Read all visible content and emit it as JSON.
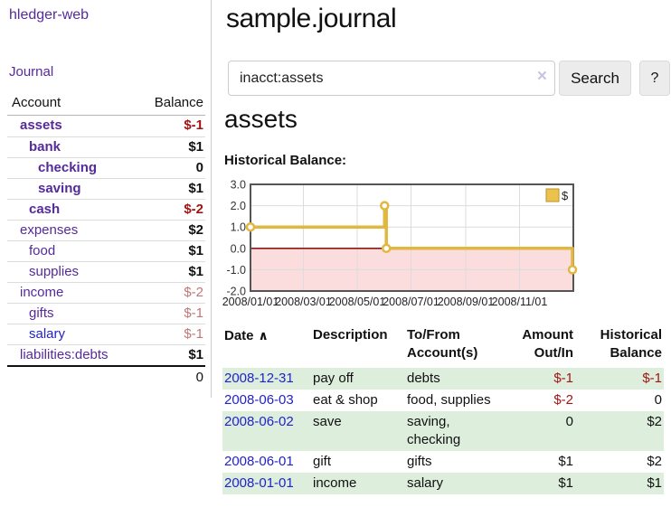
{
  "app": {
    "title": "hledger-web"
  },
  "colors": {
    "purple": "#552a9b",
    "link_blue": "#2222cc",
    "negative": "#a31515",
    "negative_muted": "#c07777",
    "row_stripe": "#ddeedd"
  },
  "sidebar": {
    "journal_link": "Journal",
    "accounts_table": {
      "headers": {
        "account": "Account",
        "balance": "Balance"
      },
      "rows": [
        {
          "name": "assets",
          "balance": "$-1",
          "depth": 1,
          "bold": true,
          "balance_tone": "strong-negative"
        },
        {
          "name": "bank",
          "balance": "$1",
          "depth": 2,
          "bold": true,
          "balance_tone": null
        },
        {
          "name": "checking",
          "balance": "0",
          "depth": 3,
          "bold": true,
          "balance_tone": null
        },
        {
          "name": "saving",
          "balance": "$1",
          "depth": 3,
          "bold": true,
          "balance_tone": null
        },
        {
          "name": "cash",
          "balance": "$-2",
          "depth": 2,
          "bold": true,
          "balance_tone": "strong-negative"
        },
        {
          "name": "expenses",
          "balance": "$2",
          "depth": 1,
          "bold": false,
          "balance_tone": null
        },
        {
          "name": "food",
          "balance": "$1",
          "depth": 2,
          "bold": false,
          "balance_tone": null
        },
        {
          "name": "supplies",
          "balance": "$1",
          "depth": 2,
          "bold": false,
          "balance_tone": null
        },
        {
          "name": "income",
          "balance": "$-2",
          "depth": 1,
          "bold": false,
          "balance_tone": "muted-negative"
        },
        {
          "name": "gifts",
          "balance": "$-1",
          "depth": 2,
          "bold": false,
          "balance_tone": "muted-negative"
        },
        {
          "name": "salary",
          "balance": "$-1",
          "depth": 2,
          "bold": false,
          "balance_tone": "muted-negative",
          "link_color": "blue"
        },
        {
          "name": "liabilities:debts",
          "balance": "$1",
          "depth": 1,
          "bold": false,
          "balance_tone": null
        }
      ],
      "total": "0"
    }
  },
  "main": {
    "title": "sample.journal",
    "search": {
      "value": "inacct:assets",
      "clear_icon": "×",
      "button": "Search",
      "help_button": "?"
    },
    "account_heading": "assets",
    "chart_heading": "Historical Balance:"
  },
  "chart_data": {
    "type": "line",
    "style": "step-after",
    "title": "Historical Balance:",
    "legend": [
      {
        "label": "$",
        "color": "#ecc24d",
        "border": "#b8962e"
      }
    ],
    "legend_position": "top-right",
    "grid": true,
    "grid_color": "#dcdcdc",
    "frame_color": "#555555",
    "zero_line_color": "#8b1717",
    "negative_region_color": "#fcdddd",
    "x_range": [
      "2008-01-01",
      "2009-01-01"
    ],
    "x_ticks": [
      "2008/01/01",
      "2008/03/01",
      "2008/05/01",
      "2008/07/01",
      "2008/09/01",
      "2008/11/01"
    ],
    "x_tick_dates": [
      "2008-01-01",
      "2008-03-01",
      "2008-05-01",
      "2008-07-01",
      "2008-09-01",
      "2008-11-01"
    ],
    "y_ticks": [
      3.0,
      2.0,
      1.0,
      0.0,
      -1.0,
      -2.0
    ],
    "ylim": [
      -2.0,
      3.0
    ],
    "series": [
      {
        "name": "$",
        "color": "#e2b740",
        "points": [
          {
            "date": "2008-01-01",
            "value": 1
          },
          {
            "date": "2008-06-01",
            "value": 2
          },
          {
            "date": "2008-06-03",
            "value": 0
          },
          {
            "date": "2008-12-31",
            "value": -1
          }
        ]
      }
    ]
  },
  "table": {
    "headers": {
      "date": "Date",
      "sort_icon": "∧",
      "description": "Description",
      "tofrom": "To/From\nAccount(s)",
      "amount": "Amount\nOut/In",
      "balance": "Historical\nBalance"
    },
    "rows": [
      {
        "date": "2008-12-31",
        "description": "pay off",
        "accounts": "debts",
        "amount": "$-1",
        "amount_negative": true,
        "balance": "$-1",
        "balance_negative": true
      },
      {
        "date": "2008-06-03",
        "description": "eat & shop",
        "accounts": "food, supplies",
        "amount": "$-2",
        "amount_negative": true,
        "balance": "0",
        "balance_negative": false
      },
      {
        "date": "2008-06-02",
        "description": "save",
        "accounts": "saving,\nchecking",
        "amount": "0",
        "amount_negative": false,
        "balance": "$2",
        "balance_negative": false
      },
      {
        "date": "2008-06-01",
        "description": "gift",
        "accounts": "gifts",
        "amount": "$1",
        "amount_negative": false,
        "balance": "$2",
        "balance_negative": false
      },
      {
        "date": "2008-01-01",
        "description": "income",
        "accounts": "salary",
        "amount": "$1",
        "amount_negative": false,
        "balance": "$1",
        "balance_negative": false
      }
    ]
  }
}
